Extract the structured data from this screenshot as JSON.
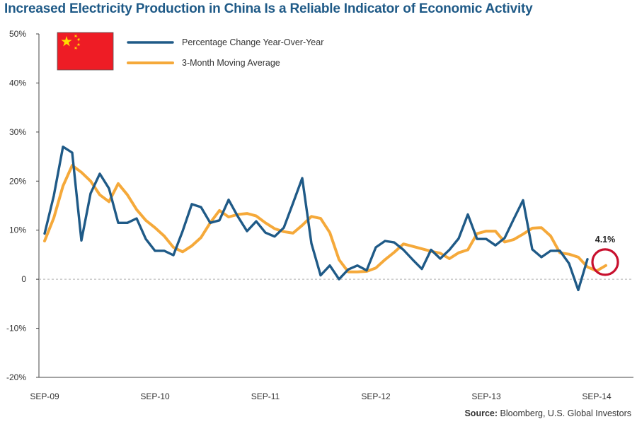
{
  "title": "Increased Electricity Production in China Is a Reliable Indicator of Economic Activity",
  "source": {
    "label": "Source:",
    "text": "Bloomberg, U.S. Global Investors"
  },
  "callout": {
    "label": "4.1%",
    "value": 4.1,
    "month_index": 60
  },
  "flag_icon": "china-flag-icon",
  "colors": {
    "series1": "#1f5a87",
    "series2": "#f5a93a",
    "callout": "#c8102e",
    "zero_line": "#b0b0b0"
  },
  "chart_data": {
    "type": "line",
    "title": "Increased Electricity Production in China Is a Reliable Indicator of Economic Activity",
    "xlabel": "",
    "ylabel": "",
    "ylim": [
      -20,
      50
    ],
    "yticks": [
      -20,
      -10,
      0,
      10,
      20,
      30,
      40,
      50
    ],
    "ytick_labels": [
      "-20%",
      "-10%",
      "0",
      "10%",
      "20%",
      "30%",
      "40%",
      "50%"
    ],
    "x_start": "2009-09",
    "x_end": "2014-10",
    "xticks": [
      {
        "label": "SEP-09",
        "month_index": 0
      },
      {
        "label": "SEP-10",
        "month_index": 12
      },
      {
        "label": "SEP-11",
        "month_index": 24
      },
      {
        "label": "SEP-12",
        "month_index": 36
      },
      {
        "label": "SEP-13",
        "month_index": 48
      },
      {
        "label": "SEP-14",
        "month_index": 60
      }
    ],
    "grid": false,
    "legend_position": "top-left",
    "series": [
      {
        "name": "Percentage Change Year-Over-Year",
        "color": "#1f5a87",
        "points": [
          [
            0,
            9.3
          ],
          [
            1,
            17
          ],
          [
            2,
            27
          ],
          [
            3,
            25.8
          ],
          [
            4,
            7.9
          ],
          [
            5,
            17.5
          ],
          [
            6,
            21.5
          ],
          [
            7,
            18.5
          ],
          [
            8,
            11.5
          ],
          [
            9,
            11.5
          ],
          [
            10,
            12.4
          ],
          [
            11,
            8.2
          ],
          [
            12,
            5.8
          ],
          [
            13,
            5.8
          ],
          [
            14,
            4.9
          ],
          [
            15,
            9.8
          ],
          [
            16,
            15.3
          ],
          [
            17,
            14.7
          ],
          [
            18,
            11.5
          ],
          [
            19,
            12
          ],
          [
            20,
            16.2
          ],
          [
            21,
            12.8
          ],
          [
            22,
            9.8
          ],
          [
            23,
            11.8
          ],
          [
            24,
            9.5
          ],
          [
            25,
            8.7
          ],
          [
            26,
            10.5
          ],
          [
            27,
            15.5
          ],
          [
            28,
            20.6
          ],
          [
            29,
            7.3
          ],
          [
            30,
            0.8
          ],
          [
            31,
            2.8
          ],
          [
            32,
            0
          ],
          [
            33,
            2
          ],
          [
            34,
            2.8
          ],
          [
            35,
            1.8
          ],
          [
            36,
            6.5
          ],
          [
            37,
            7.8
          ],
          [
            38,
            7.5
          ],
          [
            39,
            6
          ],
          [
            40,
            4
          ],
          [
            41,
            2.1
          ],
          [
            42,
            6
          ],
          [
            43,
            4.2
          ],
          [
            44,
            6
          ],
          [
            45,
            8.3
          ],
          [
            46,
            13.2
          ],
          [
            47,
            8.2
          ],
          [
            48,
            8.2
          ],
          [
            49,
            6.9
          ],
          [
            50,
            8.4
          ],
          [
            51,
            12.3
          ],
          [
            52,
            16.1
          ],
          [
            53,
            6.1
          ],
          [
            54,
            4.5
          ],
          [
            55,
            5.8
          ],
          [
            56,
            5.8
          ],
          [
            57,
            3.2
          ],
          [
            58,
            -2.2
          ],
          [
            59,
            4.1
          ]
        ]
      },
      {
        "name": "3-Month Moving Average",
        "color": "#f5a93a",
        "points": [
          [
            0,
            7.8
          ],
          [
            1,
            12.5
          ],
          [
            2,
            19
          ],
          [
            3,
            23.2
          ],
          [
            4,
            21.8
          ],
          [
            5,
            20
          ],
          [
            6,
            17.2
          ],
          [
            7,
            15.8
          ],
          [
            8,
            19.5
          ],
          [
            9,
            17.2
          ],
          [
            10,
            14.2
          ],
          [
            11,
            12
          ],
          [
            12,
            10.5
          ],
          [
            13,
            8.8
          ],
          [
            14,
            6.5
          ],
          [
            15,
            5.6
          ],
          [
            16,
            6.8
          ],
          [
            17,
            8.5
          ],
          [
            18,
            11.5
          ],
          [
            19,
            14
          ],
          [
            20,
            12.7
          ],
          [
            21,
            13.2
          ],
          [
            22,
            13.4
          ],
          [
            23,
            12.9
          ],
          [
            24,
            11.5
          ],
          [
            25,
            10.3
          ],
          [
            26,
            9.7
          ],
          [
            27,
            9.4
          ],
          [
            28,
            11
          ],
          [
            29,
            12.8
          ],
          [
            30,
            12.4
          ],
          [
            31,
            9.5
          ],
          [
            32,
            4
          ],
          [
            33,
            1.5
          ],
          [
            34,
            1.5
          ],
          [
            35,
            1.6
          ],
          [
            36,
            2.3
          ],
          [
            37,
            4
          ],
          [
            38,
            5.5
          ],
          [
            39,
            7.2
          ],
          [
            40,
            6.7
          ],
          [
            41,
            6.2
          ],
          [
            42,
            5.7
          ],
          [
            43,
            5.3
          ],
          [
            44,
            4.2
          ],
          [
            45,
            5.4
          ],
          [
            46,
            6
          ],
          [
            47,
            9.3
          ],
          [
            48,
            9.8
          ],
          [
            49,
            9.8
          ],
          [
            50,
            7.6
          ],
          [
            51,
            8.1
          ],
          [
            52,
            9.2
          ],
          [
            53,
            10.4
          ],
          [
            54,
            10.5
          ],
          [
            55,
            8.8
          ],
          [
            56,
            5.4
          ],
          [
            57,
            5.1
          ],
          [
            58,
            4.5
          ],
          [
            59,
            2.5
          ],
          [
            60,
            1.7
          ],
          [
            61,
            2.8
          ]
        ]
      }
    ]
  }
}
